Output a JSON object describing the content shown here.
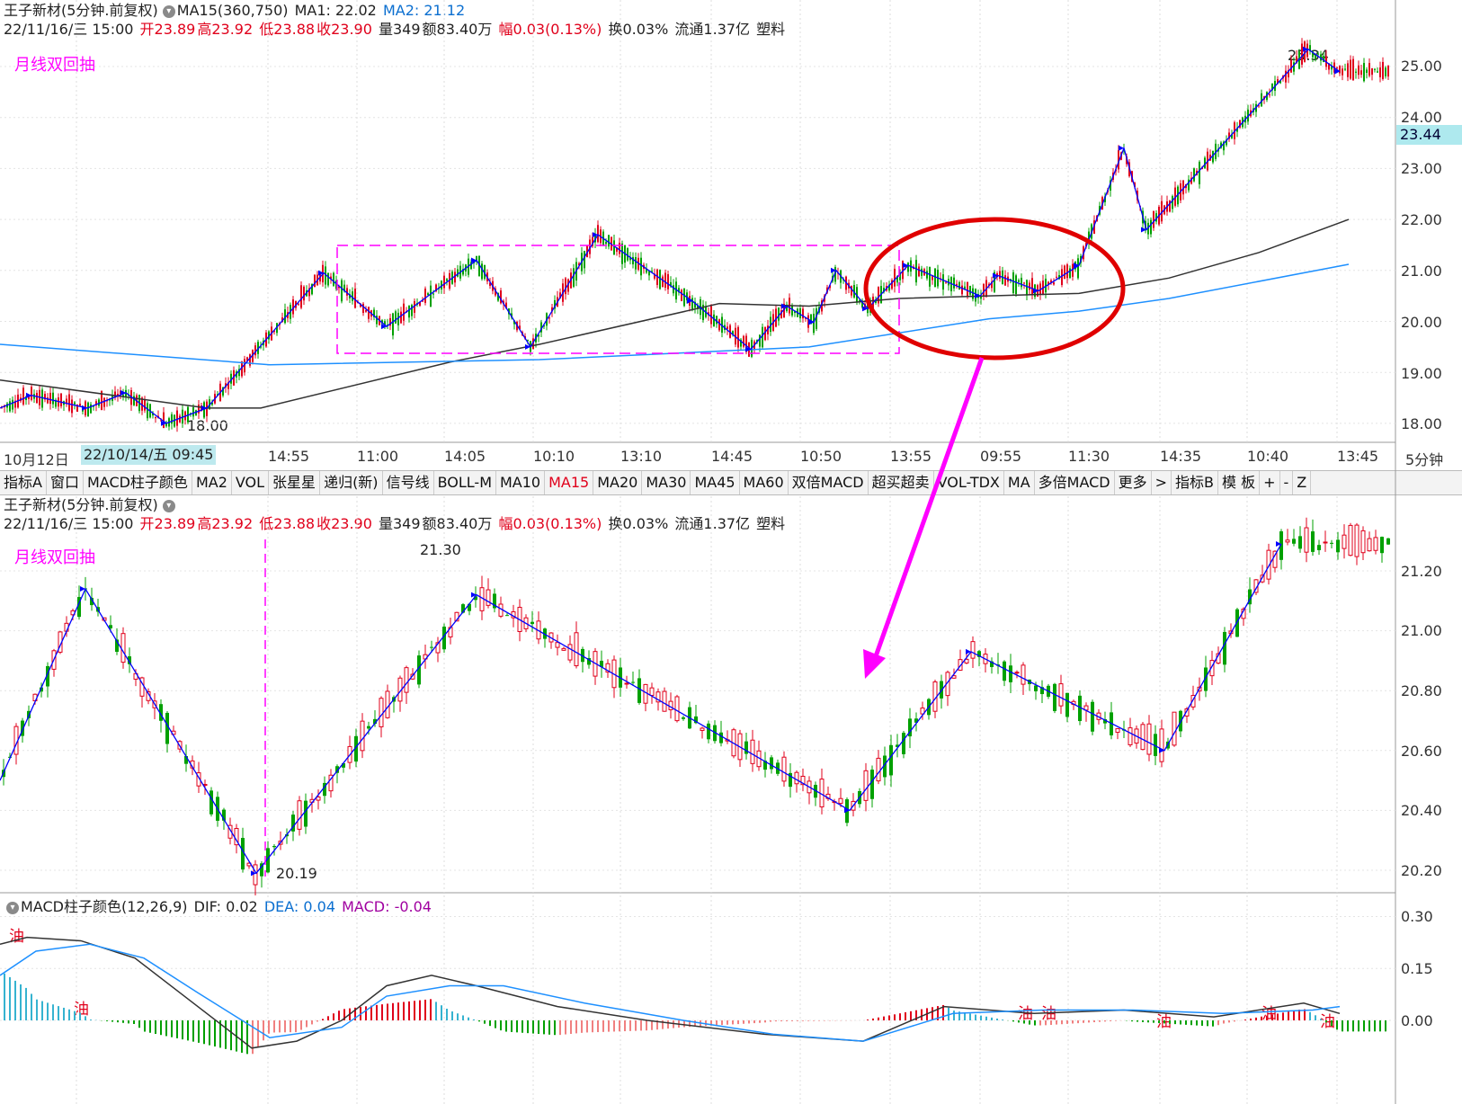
{
  "top_panel": {
    "title": "王子新材(5分钟.前复权)",
    "ma_label": "MA15(360,750)",
    "ma1": "MA1: 22.02",
    "ma2": "MA2: 21.12",
    "info": {
      "datetime": "22/11/16/三 15:00",
      "open": "开23.89",
      "high": "高23.92",
      "low": "低23.88",
      "close": "收23.90",
      "volume": "量349",
      "amount": "额83.40万",
      "change": "幅0.03(0.13%)",
      "turnover": "换0.03%",
      "float": "流通1.37亿",
      "sector": "塑料"
    },
    "annotation": "月线双回抽",
    "price_tag": "23.44",
    "high_label": "25.34",
    "low_label": "18.00",
    "y_ticks": [
      "25.00",
      "24.00",
      "23.00",
      "22.00",
      "21.00",
      "20.00",
      "19.00",
      "18.00"
    ]
  },
  "time_axis": {
    "labels": [
      "10月12日",
      "14:55",
      "11:00",
      "14:05",
      "10:10",
      "13:10",
      "14:45",
      "10:50",
      "13:55",
      "09:55",
      "11:30",
      "14:35",
      "10:40",
      "13:45"
    ],
    "highlight": "22/10/14/五 09:45",
    "period": "5分钟"
  },
  "tabs": [
    {
      "label": "指标A",
      "active": false
    },
    {
      "label": "窗口",
      "active": false
    },
    {
      "label": "MACD柱子颜色",
      "active": false
    },
    {
      "label": "MA2",
      "active": false
    },
    {
      "label": "VOL",
      "active": false
    },
    {
      "label": "张星星",
      "active": false
    },
    {
      "label": "递归(新)",
      "active": false
    },
    {
      "label": "信号线",
      "active": false
    },
    {
      "label": "BOLL-M",
      "active": false
    },
    {
      "label": "MA10",
      "active": false
    },
    {
      "label": "MA15",
      "active": true
    },
    {
      "label": "MA20",
      "active": false
    },
    {
      "label": "MA30",
      "active": false
    },
    {
      "label": "MA45",
      "active": false
    },
    {
      "label": "MA60",
      "active": false
    },
    {
      "label": "双倍MACD",
      "active": false
    },
    {
      "label": "超买超卖",
      "active": false
    },
    {
      "label": "VOL-TDX",
      "active": false
    },
    {
      "label": "MA",
      "active": false
    },
    {
      "label": "多倍MACD",
      "active": false
    },
    {
      "label": "更多",
      "active": false
    },
    {
      "label": ">",
      "active": false
    },
    {
      "label": "指标B",
      "active": false
    },
    {
      "label": "模 板",
      "active": false
    },
    {
      "label": "+",
      "active": false
    },
    {
      "label": "-",
      "active": false
    },
    {
      "label": "Z",
      "active": false
    }
  ],
  "bottom_panel": {
    "title": "王子新材(5分钟.前复权)",
    "annotation": "月线双回抽",
    "high_label": "21.30",
    "low_label": "20.19",
    "y_ticks": [
      "21.20",
      "21.00",
      "20.80",
      "20.60",
      "20.40",
      "20.20"
    ]
  },
  "macd_panel": {
    "title": "MACD柱子颜色(12,26,9)",
    "dif": "DIF: 0.02",
    "dea": "DEA: 0.04",
    "macd": "MACD: -0.04",
    "signal_label": "油",
    "y_ticks": [
      "0.30",
      "0.15",
      "0.00"
    ]
  },
  "colors": {
    "up": "#e0001b",
    "down": "#00a000",
    "zigzag": "#0000ff",
    "ma_long": "#333333",
    "ma_blue": "#1e90ff",
    "annotation": "#ff00ff",
    "circle": "#e00000"
  },
  "chart_data": [
    {
      "type": "line",
      "title": "王子新材(5分钟.前复权)",
      "ylim": [
        17.8,
        25.4
      ],
      "zigzag": {
        "x": [
          0,
          35,
          97,
          140,
          185,
          230,
          360,
          430,
          530,
          590,
          665,
          770,
          835,
          875,
          905,
          930,
          965,
          1010,
          1090,
          1110,
          1155,
          1200,
          1250,
          1275,
          1455,
          1490
        ],
        "y": [
          18.3,
          18.55,
          18.3,
          18.6,
          18.0,
          18.3,
          20.95,
          19.9,
          21.2,
          19.5,
          21.7,
          20.4,
          19.45,
          20.3,
          19.98,
          21.0,
          20.25,
          21.1,
          20.5,
          20.9,
          20.6,
          21.1,
          23.4,
          21.8,
          25.34,
          24.9
        ]
      },
      "ma_black": {
        "x": [
          0,
          230,
          290,
          500,
          600,
          800,
          900,
          1000,
          1200,
          1300,
          1400,
          1500
        ],
        "y": [
          18.85,
          18.3,
          18.3,
          19.2,
          19.55,
          20.35,
          20.3,
          20.45,
          20.55,
          20.85,
          21.35,
          22.0
        ]
      },
      "ma_blue": {
        "x": [
          0,
          300,
          600,
          900,
          1100,
          1200,
          1300,
          1500
        ],
        "y": [
          19.55,
          19.15,
          19.25,
          19.5,
          20.05,
          20.2,
          20.45,
          21.12
        ]
      }
    },
    {
      "type": "line",
      "title": "王子新材(5分钟.前复权)",
      "ylim": [
        20.16,
        21.34
      ],
      "zigzag": {
        "x": [
          0,
          95,
          285,
          530,
          945,
          1080,
          1295,
          1425
        ],
        "y": [
          20.5,
          21.14,
          20.19,
          21.12,
          20.4,
          20.93,
          20.6,
          21.29
        ]
      }
    },
    {
      "type": "line",
      "title": "MACD柱子颜色(12,26,9)",
      "ylim": [
        -0.2,
        0.33
      ],
      "series": [
        {
          "name": "DIF",
          "x": [
            0,
            30,
            90,
            150,
            200,
            280,
            330,
            380,
            430,
            480,
            530,
            620,
            720,
            850,
            960,
            1050,
            1150,
            1250,
            1350,
            1450,
            1490
          ],
          "y": [
            0.22,
            0.24,
            0.23,
            0.18,
            0.08,
            -0.08,
            -0.06,
            0.0,
            0.1,
            0.13,
            0.1,
            0.04,
            0.0,
            -0.04,
            -0.06,
            0.04,
            0.02,
            0.03,
            0.01,
            0.05,
            0.02
          ]
        },
        {
          "name": "DEA",
          "x": [
            0,
            40,
            100,
            160,
            220,
            300,
            380,
            430,
            500,
            560,
            650,
            760,
            860,
            960,
            1060,
            1160,
            1260,
            1360,
            1460,
            1490
          ],
          "y": [
            0.13,
            0.2,
            0.22,
            0.18,
            0.08,
            -0.05,
            -0.02,
            0.07,
            0.1,
            0.1,
            0.05,
            0.0,
            -0.04,
            -0.06,
            0.02,
            0.03,
            0.03,
            0.02,
            0.03,
            0.04
          ]
        }
      ],
      "histogram_regions": [
        {
          "x_start": 5,
          "x_end": 95,
          "sign": "pos"
        },
        {
          "x_start": 100,
          "x_end": 280,
          "sign": "neg"
        },
        {
          "x_start": 330,
          "x_end": 430,
          "sign": "pos"
        },
        {
          "x_start": 435,
          "x_end": 540,
          "sign": "pos_fading"
        },
        {
          "x_start": 540,
          "x_end": 830,
          "sign": "neg"
        },
        {
          "x_start": 830,
          "x_end": 960,
          "sign": "mixed"
        },
        {
          "x_start": 980,
          "x_end": 1080,
          "sign": "pos"
        },
        {
          "x_start": 1080,
          "x_end": 1490,
          "sign": "small"
        }
      ]
    }
  ]
}
